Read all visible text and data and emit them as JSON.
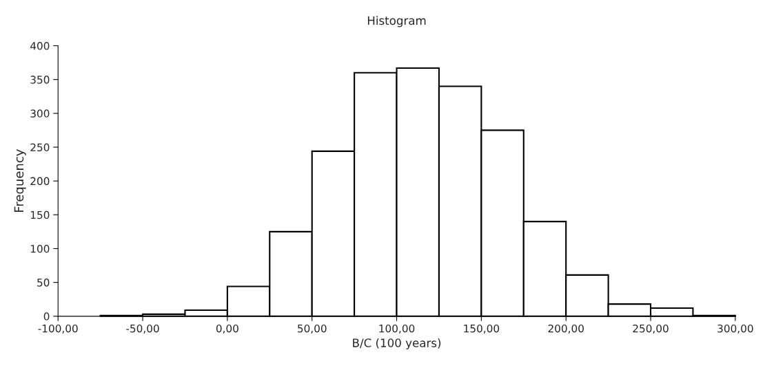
{
  "chart_data": {
    "type": "histogram",
    "title": "Histogram",
    "xlabel": "B/C (100 years)",
    "ylabel": "Frequency",
    "bins": [
      -100,
      -75,
      -50,
      -25,
      0,
      25,
      50,
      75,
      100,
      125,
      150,
      175,
      200,
      225,
      250,
      275,
      300
    ],
    "values": [
      0,
      1,
      3,
      9,
      44,
      125,
      244,
      360,
      367,
      340,
      275,
      140,
      61,
      18,
      12,
      1
    ],
    "color": "#ffffff",
    "xlim": [
      -100,
      300
    ],
    "xticks": [
      {
        "value": -100,
        "label": "-100,00"
      },
      {
        "value": -50,
        "label": "-50,00"
      },
      {
        "value": 0,
        "label": "0,00"
      },
      {
        "value": 50,
        "label": "50,00"
      },
      {
        "value": 100,
        "label": "100,00"
      },
      {
        "value": 150,
        "label": "150,00"
      },
      {
        "value": 200,
        "label": "200,00"
      },
      {
        "value": 250,
        "label": "250,00"
      },
      {
        "value": 300,
        "label": "300,00"
      }
    ],
    "ylim": [
      0,
      400
    ],
    "yticks": [
      0,
      50,
      100,
      150,
      200,
      250,
      300,
      350,
      400
    ],
    "grid": false
  }
}
